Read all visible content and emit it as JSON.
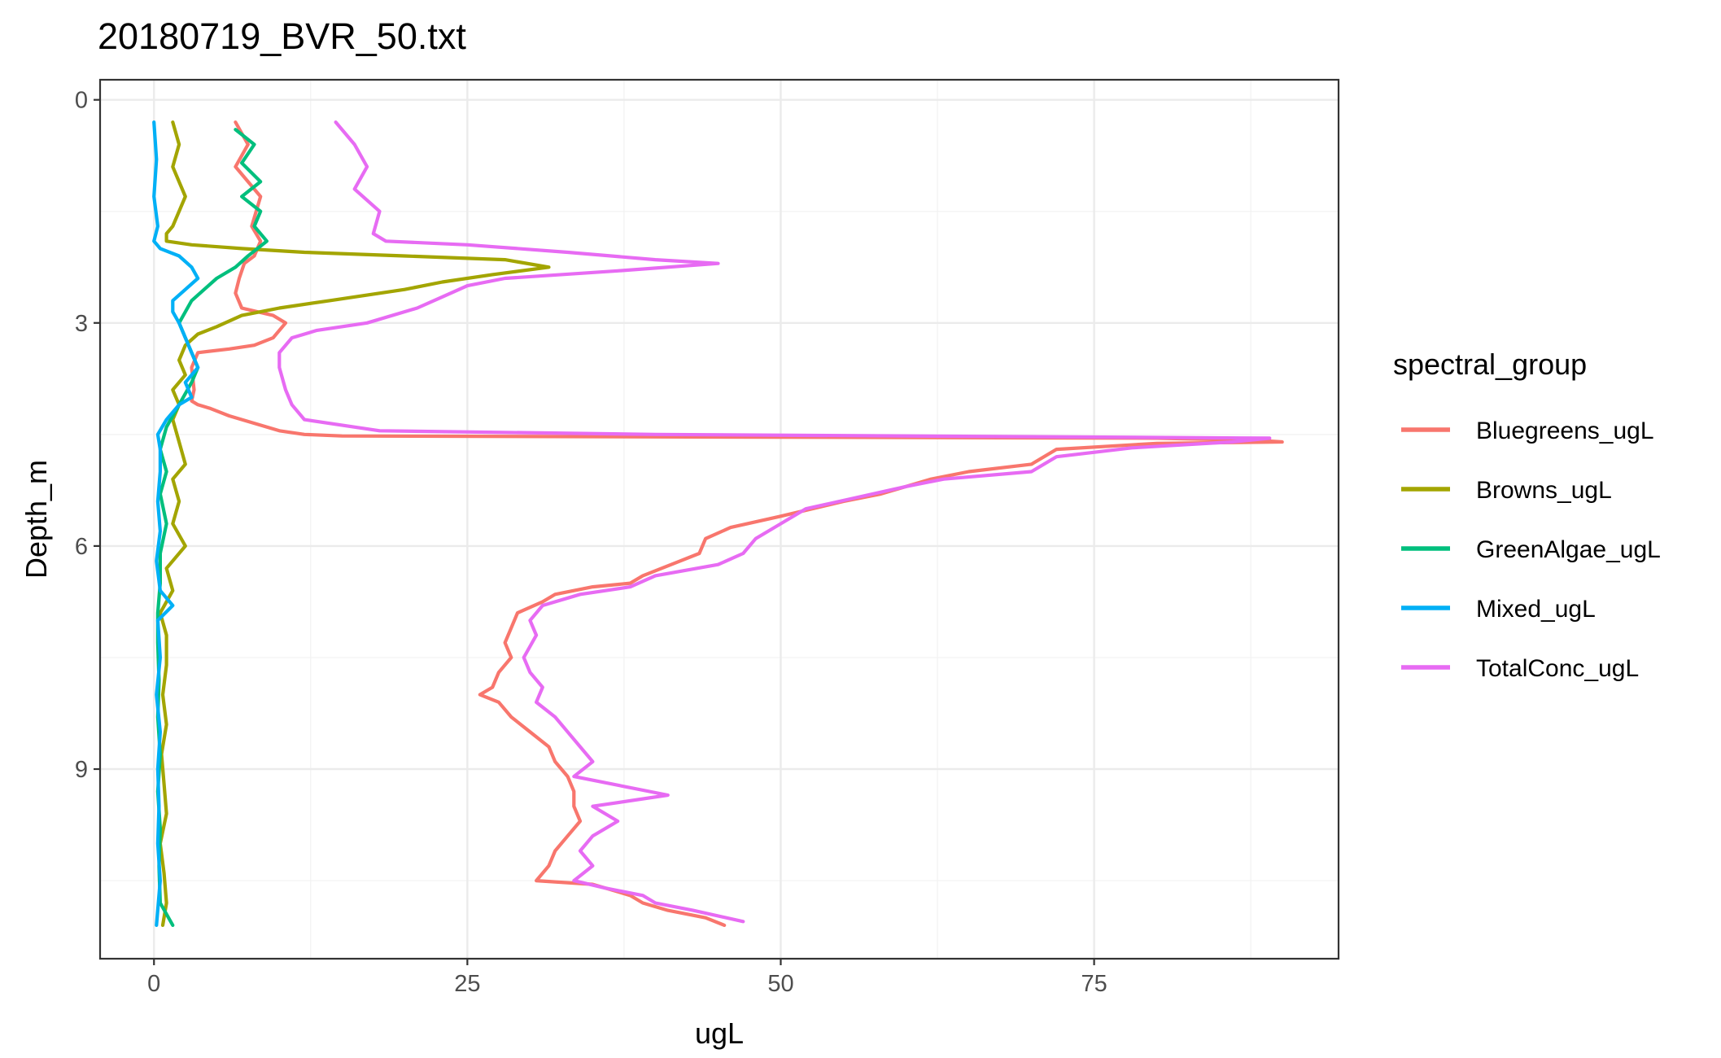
{
  "chart_data": {
    "type": "line",
    "title": "20180719_BVR_50.txt",
    "xlabel": "ugL",
    "ylabel": "Depth_m",
    "xlim": [
      -4.3,
      94.5
    ],
    "ylim": [
      11.55,
      -0.27
    ],
    "y_reversed": true,
    "x_ticks": [
      0,
      25,
      50,
      75
    ],
    "y_ticks": [
      0,
      3,
      6,
      9
    ],
    "grid": true,
    "legend": {
      "title": "spectral_group",
      "position": "right"
    },
    "series": [
      {
        "name": "Bluegreens_ugL",
        "color": "#F8766D",
        "points": [
          [
            6.5,
            0.3
          ],
          [
            7.5,
            0.6
          ],
          [
            6.5,
            0.9
          ],
          [
            8.5,
            1.3
          ],
          [
            7.8,
            1.7
          ],
          [
            8.5,
            1.9
          ],
          [
            8.0,
            2.1
          ],
          [
            7.2,
            2.2
          ],
          [
            6.8,
            2.4
          ],
          [
            6.5,
            2.6
          ],
          [
            7.0,
            2.8
          ],
          [
            9.5,
            2.9
          ],
          [
            10.5,
            3.0
          ],
          [
            9.5,
            3.2
          ],
          [
            8.0,
            3.3
          ],
          [
            6.0,
            3.35
          ],
          [
            3.5,
            3.4
          ],
          [
            3.0,
            3.6
          ],
          [
            3.2,
            3.9
          ],
          [
            3.0,
            4.05
          ],
          [
            3.5,
            4.1
          ],
          [
            4.5,
            4.15
          ],
          [
            6.0,
            4.25
          ],
          [
            8.0,
            4.35
          ],
          [
            10.0,
            4.45
          ],
          [
            12.0,
            4.5
          ],
          [
            15.0,
            4.52
          ],
          [
            80.0,
            4.55
          ],
          [
            88.0,
            4.58
          ],
          [
            90.0,
            4.6
          ],
          [
            80.0,
            4.62
          ],
          [
            72.0,
            4.7
          ],
          [
            70.0,
            4.9
          ],
          [
            65.0,
            5.0
          ],
          [
            62.0,
            5.1
          ],
          [
            58.0,
            5.3
          ],
          [
            55.0,
            5.4
          ],
          [
            50.0,
            5.6
          ],
          [
            46.0,
            5.75
          ],
          [
            44.0,
            5.9
          ],
          [
            43.5,
            6.1
          ],
          [
            42.0,
            6.2
          ],
          [
            39.0,
            6.4
          ],
          [
            38.0,
            6.5
          ],
          [
            35.0,
            6.55
          ],
          [
            32.0,
            6.65
          ],
          [
            31.0,
            6.75
          ],
          [
            29.0,
            6.9
          ],
          [
            28.5,
            7.1
          ],
          [
            28.0,
            7.3
          ],
          [
            28.5,
            7.5
          ],
          [
            27.5,
            7.7
          ],
          [
            27.0,
            7.9
          ],
          [
            26.0,
            8.0
          ],
          [
            27.5,
            8.1
          ],
          [
            28.5,
            8.3
          ],
          [
            30.0,
            8.5
          ],
          [
            31.5,
            8.7
          ],
          [
            32.0,
            8.9
          ],
          [
            33.0,
            9.1
          ],
          [
            33.5,
            9.3
          ],
          [
            33.5,
            9.5
          ],
          [
            34.0,
            9.7
          ],
          [
            33.0,
            9.9
          ],
          [
            32.0,
            10.1
          ],
          [
            31.5,
            10.3
          ],
          [
            30.5,
            10.5
          ],
          [
            35.0,
            10.55
          ],
          [
            38.0,
            10.7
          ],
          [
            39.0,
            10.8
          ],
          [
            41.0,
            10.9
          ],
          [
            44.0,
            11.0
          ],
          [
            45.5,
            11.1
          ]
        ]
      },
      {
        "name": "Browns_ugL",
        "color": "#A3A500",
        "points": [
          [
            1.5,
            0.3
          ],
          [
            2.0,
            0.6
          ],
          [
            1.5,
            0.9
          ],
          [
            2.5,
            1.3
          ],
          [
            1.5,
            1.7
          ],
          [
            1.0,
            1.8
          ],
          [
            1.0,
            1.9
          ],
          [
            3.0,
            1.95
          ],
          [
            7.0,
            2.0
          ],
          [
            12.0,
            2.05
          ],
          [
            20.0,
            2.1
          ],
          [
            28.0,
            2.15
          ],
          [
            31.5,
            2.25
          ],
          [
            27.0,
            2.35
          ],
          [
            23.0,
            2.45
          ],
          [
            20.0,
            2.55
          ],
          [
            14.0,
            2.7
          ],
          [
            10.0,
            2.8
          ],
          [
            7.0,
            2.9
          ],
          [
            5.0,
            3.05
          ],
          [
            3.5,
            3.15
          ],
          [
            2.5,
            3.3
          ],
          [
            2.0,
            3.5
          ],
          [
            2.5,
            3.7
          ],
          [
            1.5,
            3.9
          ],
          [
            2.0,
            4.1
          ],
          [
            1.5,
            4.3
          ],
          [
            2.0,
            4.6
          ],
          [
            2.5,
            4.9
          ],
          [
            1.5,
            5.1
          ],
          [
            2.0,
            5.4
          ],
          [
            1.5,
            5.7
          ],
          [
            2.5,
            6.0
          ],
          [
            1.0,
            6.3
          ],
          [
            1.5,
            6.6
          ],
          [
            0.5,
            6.9
          ],
          [
            1.0,
            7.2
          ],
          [
            1.0,
            7.6
          ],
          [
            0.7,
            8.0
          ],
          [
            1.0,
            8.4
          ],
          [
            0.6,
            8.8
          ],
          [
            0.8,
            9.2
          ],
          [
            1.0,
            9.6
          ],
          [
            0.5,
            10.0
          ],
          [
            0.8,
            10.4
          ],
          [
            1.0,
            10.8
          ],
          [
            0.7,
            11.1
          ]
        ]
      },
      {
        "name": "GreenAlgae_ugL",
        "color": "#00BF7D",
        "points": [
          [
            6.5,
            0.4
          ],
          [
            8.0,
            0.6
          ],
          [
            7.0,
            0.85
          ],
          [
            8.5,
            1.1
          ],
          [
            7.0,
            1.3
          ],
          [
            8.5,
            1.5
          ],
          [
            8.0,
            1.7
          ],
          [
            9.0,
            1.9
          ],
          [
            7.5,
            2.1
          ],
          [
            6.5,
            2.25
          ],
          [
            5.0,
            2.4
          ],
          [
            4.0,
            2.55
          ],
          [
            3.0,
            2.7
          ],
          [
            2.5,
            2.85
          ],
          [
            2.0,
            3.0
          ],
          [
            2.5,
            3.2
          ],
          [
            3.0,
            3.4
          ],
          [
            3.5,
            3.6
          ],
          [
            3.0,
            3.8
          ],
          [
            2.0,
            4.1
          ],
          [
            1.0,
            4.4
          ],
          [
            0.5,
            4.7
          ],
          [
            1.0,
            5.0
          ],
          [
            0.5,
            5.3
          ],
          [
            1.0,
            5.7
          ],
          [
            0.5,
            6.1
          ],
          [
            0.5,
            6.5
          ],
          [
            0.3,
            6.9
          ],
          [
            0.3,
            7.3
          ],
          [
            0.4,
            7.8
          ],
          [
            0.3,
            8.3
          ],
          [
            0.5,
            8.8
          ],
          [
            0.3,
            9.3
          ],
          [
            0.5,
            9.8
          ],
          [
            0.4,
            10.3
          ],
          [
            0.5,
            10.8
          ],
          [
            1.5,
            11.1
          ]
        ]
      },
      {
        "name": "Mixed_ugL",
        "color": "#00B0F6",
        "points": [
          [
            0.0,
            0.3
          ],
          [
            0.2,
            0.8
          ],
          [
            0.0,
            1.3
          ],
          [
            0.3,
            1.7
          ],
          [
            0.0,
            1.9
          ],
          [
            0.5,
            2.0
          ],
          [
            2.0,
            2.1
          ],
          [
            3.0,
            2.25
          ],
          [
            3.5,
            2.4
          ],
          [
            2.5,
            2.55
          ],
          [
            1.5,
            2.7
          ],
          [
            1.5,
            2.85
          ],
          [
            2.0,
            3.0
          ],
          [
            2.5,
            3.2
          ],
          [
            3.0,
            3.4
          ],
          [
            3.5,
            3.6
          ],
          [
            2.5,
            3.8
          ],
          [
            3.0,
            4.0
          ],
          [
            2.0,
            4.1
          ],
          [
            1.0,
            4.3
          ],
          [
            0.3,
            4.5
          ],
          [
            0.5,
            4.7
          ],
          [
            0.5,
            5.0
          ],
          [
            0.3,
            5.4
          ],
          [
            0.5,
            5.8
          ],
          [
            0.2,
            6.2
          ],
          [
            0.5,
            6.6
          ],
          [
            1.5,
            6.8
          ],
          [
            0.3,
            7.0
          ],
          [
            0.5,
            7.5
          ],
          [
            0.2,
            8.0
          ],
          [
            0.5,
            8.5
          ],
          [
            0.3,
            9.0
          ],
          [
            0.4,
            9.5
          ],
          [
            0.3,
            10.0
          ],
          [
            0.5,
            10.5
          ],
          [
            0.2,
            11.1
          ]
        ]
      },
      {
        "name": "TotalConc_ugL",
        "color": "#E76BF3",
        "points": [
          [
            14.5,
            0.3
          ],
          [
            16.0,
            0.6
          ],
          [
            17.0,
            0.9
          ],
          [
            16.0,
            1.2
          ],
          [
            18.0,
            1.5
          ],
          [
            17.5,
            1.8
          ],
          [
            18.5,
            1.9
          ],
          [
            25.0,
            1.95
          ],
          [
            33.0,
            2.05
          ],
          [
            40.0,
            2.15
          ],
          [
            45.0,
            2.2
          ],
          [
            37.0,
            2.3
          ],
          [
            28.0,
            2.4
          ],
          [
            25.0,
            2.5
          ],
          [
            23.0,
            2.65
          ],
          [
            21.0,
            2.8
          ],
          [
            17.0,
            3.0
          ],
          [
            13.0,
            3.1
          ],
          [
            11.0,
            3.2
          ],
          [
            10.0,
            3.4
          ],
          [
            10.0,
            3.6
          ],
          [
            10.5,
            3.9
          ],
          [
            11.0,
            4.1
          ],
          [
            12.0,
            4.3
          ],
          [
            18.0,
            4.45
          ],
          [
            40.0,
            4.5
          ],
          [
            89.0,
            4.55
          ],
          [
            86.0,
            4.6
          ],
          [
            78.0,
            4.68
          ],
          [
            72.0,
            4.8
          ],
          [
            70.0,
            5.0
          ],
          [
            63.0,
            5.1
          ],
          [
            60.0,
            5.2
          ],
          [
            56.0,
            5.35
          ],
          [
            52.0,
            5.5
          ],
          [
            50.0,
            5.7
          ],
          [
            48.0,
            5.9
          ],
          [
            47.0,
            6.1
          ],
          [
            45.0,
            6.25
          ],
          [
            40.0,
            6.4
          ],
          [
            38.0,
            6.55
          ],
          [
            34.0,
            6.65
          ],
          [
            31.0,
            6.8
          ],
          [
            30.0,
            7.0
          ],
          [
            30.5,
            7.2
          ],
          [
            29.5,
            7.5
          ],
          [
            30.0,
            7.7
          ],
          [
            31.0,
            7.9
          ],
          [
            30.5,
            8.1
          ],
          [
            32.0,
            8.3
          ],
          [
            33.0,
            8.5
          ],
          [
            34.0,
            8.7
          ],
          [
            35.0,
            8.9
          ],
          [
            33.5,
            9.1
          ],
          [
            41.0,
            9.35
          ],
          [
            35.0,
            9.5
          ],
          [
            37.0,
            9.7
          ],
          [
            35.0,
            9.9
          ],
          [
            34.0,
            10.1
          ],
          [
            35.0,
            10.3
          ],
          [
            33.5,
            10.5
          ],
          [
            36.0,
            10.6
          ],
          [
            39.0,
            10.7
          ],
          [
            40.0,
            10.8
          ],
          [
            43.0,
            10.9
          ],
          [
            47.0,
            11.05
          ]
        ]
      }
    ]
  }
}
